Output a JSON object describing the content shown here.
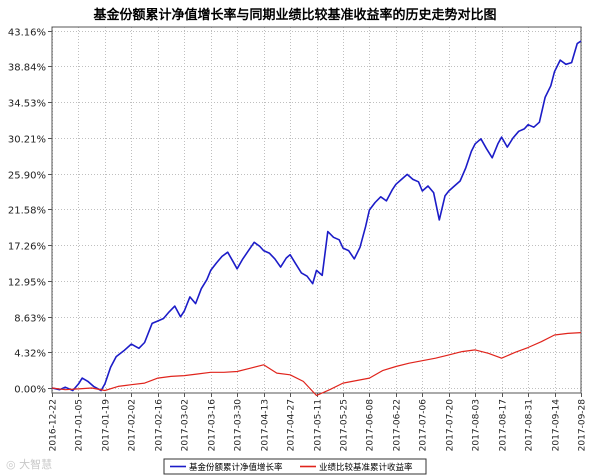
{
  "chart_data": {
    "type": "line",
    "title": "基金份额累计净值增长率与同期业绩比较基准收益率的历史走势对比图",
    "ylabel": "",
    "xlabel": "",
    "ylim": [
      -0.6,
      43.6
    ],
    "yticks": [
      "43.16%",
      "38.84%",
      "34.53%",
      "30.21%",
      "25.90%",
      "21.58%",
      "17.26%",
      "12.95%",
      "8.63%",
      "4.32%",
      "0.00%"
    ],
    "ytick_values": [
      43.16,
      38.84,
      34.53,
      30.21,
      25.9,
      21.58,
      17.26,
      12.95,
      8.63,
      4.32,
      0.0
    ],
    "xticks": [
      "2016-12-22",
      "2017-01-05",
      "2017-01-19",
      "2017-02-02",
      "2017-02-16",
      "2017-03-02",
      "2017-03-16",
      "2017-03-30",
      "2017-04-13",
      "2017-04-27",
      "2017-05-11",
      "2017-05-25",
      "2017-06-08",
      "2017-06-22",
      "2017-07-06",
      "2017-07-20",
      "2017-08-03",
      "2017-08-17",
      "2017-08-31",
      "2017-09-14",
      "2017-09-28"
    ],
    "x_start": "2016-12-22",
    "x_end": "2017-09-28",
    "grid": true,
    "legend_position": "bottom",
    "colors": {
      "fund": "#1c1cc8",
      "benchmark": "#e0241c",
      "grid": "#bfbfbf",
      "axis": "#555555"
    },
    "series": [
      {
        "name": "基金份额累计净值增长率",
        "x": [
          "2016-12-22",
          "2016-12-26",
          "2016-12-29",
          "2017-01-02",
          "2017-01-05",
          "2017-01-07",
          "2017-01-10",
          "2017-01-13",
          "2017-01-17",
          "2017-01-19",
          "2017-01-22",
          "2017-01-25",
          "2017-01-29",
          "2017-02-02",
          "2017-02-06",
          "2017-02-09",
          "2017-02-13",
          "2017-02-16",
          "2017-02-19",
          "2017-02-22",
          "2017-02-25",
          "2017-02-28",
          "2017-03-02",
          "2017-03-05",
          "2017-03-08",
          "2017-03-11",
          "2017-03-14",
          "2017-03-16",
          "2017-03-19",
          "2017-03-22",
          "2017-03-25",
          "2017-03-28",
          "2017-03-30",
          "2017-04-02",
          "2017-04-05",
          "2017-04-08",
          "2017-04-11",
          "2017-04-13",
          "2017-04-16",
          "2017-04-19",
          "2017-04-22",
          "2017-04-25",
          "2017-04-27",
          "2017-04-30",
          "2017-05-03",
          "2017-05-06",
          "2017-05-09",
          "2017-05-11",
          "2017-05-14",
          "2017-05-17",
          "2017-05-20",
          "2017-05-23",
          "2017-05-25",
          "2017-05-28",
          "2017-05-31",
          "2017-06-03",
          "2017-06-06",
          "2017-06-08",
          "2017-06-11",
          "2017-06-14",
          "2017-06-17",
          "2017-06-20",
          "2017-06-22",
          "2017-06-25",
          "2017-06-28",
          "2017-07-01",
          "2017-07-04",
          "2017-07-06",
          "2017-07-09",
          "2017-07-12",
          "2017-07-15",
          "2017-07-18",
          "2017-07-20",
          "2017-07-23",
          "2017-07-26",
          "2017-07-29",
          "2017-08-01",
          "2017-08-03",
          "2017-08-06",
          "2017-08-09",
          "2017-08-12",
          "2017-08-15",
          "2017-08-17",
          "2017-08-20",
          "2017-08-23",
          "2017-08-26",
          "2017-08-29",
          "2017-08-31",
          "2017-09-03",
          "2017-09-06",
          "2017-09-09",
          "2017-09-12",
          "2017-09-14",
          "2017-09-17",
          "2017-09-20",
          "2017-09-23",
          "2017-09-26",
          "2017-09-28"
        ],
        "values": [
          0.0,
          -0.2,
          0.1,
          -0.3,
          0.5,
          1.2,
          0.8,
          0.2,
          -0.3,
          0.5,
          2.5,
          3.8,
          4.5,
          5.3,
          4.8,
          5.5,
          7.8,
          8.1,
          8.4,
          9.2,
          9.9,
          8.6,
          9.3,
          11.0,
          10.2,
          12.0,
          13.1,
          14.2,
          15.1,
          15.9,
          16.4,
          15.2,
          14.4,
          15.6,
          16.6,
          17.6,
          17.1,
          16.6,
          16.3,
          15.6,
          14.6,
          15.7,
          16.1,
          15.0,
          13.9,
          13.5,
          12.6,
          14.2,
          13.6,
          18.9,
          18.2,
          17.9,
          16.9,
          16.6,
          15.6,
          17.0,
          19.5,
          21.5,
          22.4,
          23.1,
          22.6,
          23.9,
          24.6,
          25.2,
          25.8,
          25.2,
          24.9,
          23.8,
          24.4,
          23.6,
          20.3,
          23.2,
          23.8,
          24.4,
          25.0,
          26.6,
          28.6,
          29.5,
          30.1,
          28.9,
          27.8,
          29.5,
          30.3,
          29.1,
          30.2,
          31.0,
          31.3,
          31.8,
          31.5,
          32.1,
          35.1,
          36.5,
          38.2,
          39.6,
          39.1,
          39.3,
          41.6,
          41.9
        ]
      },
      {
        "name": "业绩比较基准累计收益率",
        "x": [
          "2016-12-22",
          "2016-12-29",
          "2017-01-05",
          "2017-01-12",
          "2017-01-19",
          "2017-01-26",
          "2017-02-02",
          "2017-02-09",
          "2017-02-16",
          "2017-02-23",
          "2017-03-02",
          "2017-03-09",
          "2017-03-16",
          "2017-03-23",
          "2017-03-30",
          "2017-04-06",
          "2017-04-13",
          "2017-04-20",
          "2017-04-27",
          "2017-05-04",
          "2017-05-11",
          "2017-05-18",
          "2017-05-25",
          "2017-06-01",
          "2017-06-08",
          "2017-06-15",
          "2017-06-22",
          "2017-06-29",
          "2017-07-06",
          "2017-07-13",
          "2017-07-20",
          "2017-07-27",
          "2017-08-03",
          "2017-08-10",
          "2017-08-17",
          "2017-08-24",
          "2017-08-31",
          "2017-09-07",
          "2017-09-14",
          "2017-09-21",
          "2017-09-28"
        ],
        "values": [
          0.0,
          -0.2,
          -0.1,
          0.0,
          -0.3,
          0.2,
          0.4,
          0.6,
          1.2,
          1.4,
          1.5,
          1.7,
          1.9,
          1.9,
          2.0,
          2.4,
          2.8,
          1.8,
          1.6,
          0.8,
          -0.9,
          -0.2,
          0.6,
          0.9,
          1.2,
          2.1,
          2.6,
          3.0,
          3.3,
          3.6,
          4.0,
          4.4,
          4.6,
          4.2,
          3.6,
          4.3,
          4.9,
          5.6,
          6.4,
          6.6,
          6.7
        ]
      }
    ]
  },
  "watermark": "大智慧"
}
